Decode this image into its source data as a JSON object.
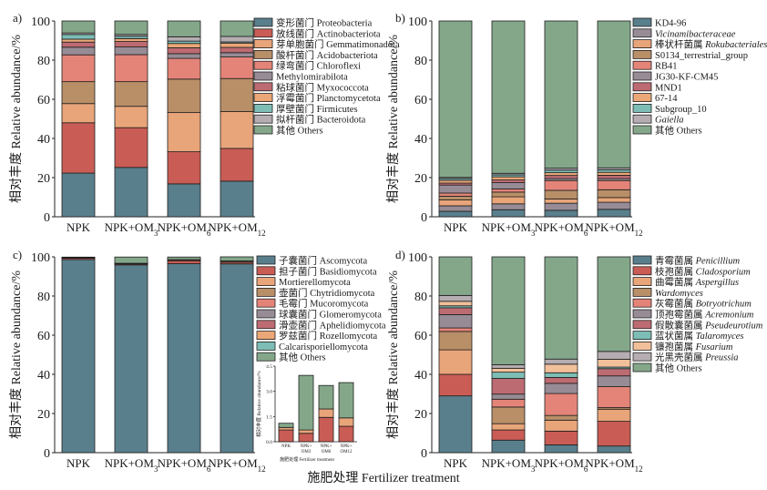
{
  "figure": {
    "xlabel": "施肥处理 Fertilizer treatment",
    "ylabel": "相对丰度 Relative abundance/%"
  },
  "colors": {
    "blue": "#5a7f8c",
    "red": "#c95d55",
    "orange": "#e8a57a",
    "brown": "#b98f68",
    "salmon": "#e48479",
    "mauve": "#978c96",
    "rose": "#bd6b72",
    "orange2": "#eba777",
    "teal": "#7dbdb6",
    "lightgray": "#b5adb2",
    "green": "#84a78a",
    "peach": "#f1c09a",
    "darkgray": "#2b2b2b"
  },
  "chart_data": [
    {
      "panel": "a)",
      "type": "bar",
      "stacked": true,
      "categories": [
        "NPK",
        "NPK+OM3",
        "NPK+OM6",
        "NPK+OM12"
      ],
      "category_labels": [
        {
          "base": "NPK",
          "sub": ""
        },
        {
          "base": "NPK+OM",
          "sub": "3"
        },
        {
          "base": "NPK+OM",
          "sub": "6"
        },
        {
          "base": "NPK+OM",
          "sub": "12"
        }
      ],
      "ylabel": "相对丰度 Relative abundance/%",
      "ylim": [
        0,
        100
      ],
      "yticks": [
        0,
        20,
        40,
        60,
        80,
        100
      ],
      "legend_position": "right",
      "series": [
        {
          "name": "变形菌门 Proteobacteria",
          "italic": "",
          "color": "blue",
          "values": [
            22.3,
            25.2,
            16.8,
            18.2
          ]
        },
        {
          "name": "放线菌门 Actinobacteriota",
          "italic": "",
          "color": "red",
          "values": [
            25.7,
            20.3,
            16.4,
            16.7
          ]
        },
        {
          "name": "芽单胞菌门 Gemmatimonadota",
          "italic": "",
          "color": "orange",
          "values": [
            9.8,
            10.9,
            20.0,
            18.8
          ]
        },
        {
          "name": "酸杆菌门 Acidobacteriota",
          "italic": "",
          "color": "brown",
          "values": [
            11.2,
            12.6,
            17.1,
            16.9
          ]
        },
        {
          "name": "绿弯菌门 Chloroflexi",
          "italic": "",
          "color": "salmon",
          "values": [
            13.7,
            13.8,
            10.6,
            11.0
          ]
        },
        {
          "name": "Methylomirabilota",
          "italic": "",
          "color": "mauve",
          "values": [
            3.9,
            3.9,
            2.4,
            2.2
          ]
        },
        {
          "name": "粘球菌门 Myxococcota",
          "italic": "",
          "color": "rose",
          "values": [
            2.6,
            2.8,
            3.0,
            2.7
          ]
        },
        {
          "name": "浮霉菌门 Planctomycetota",
          "italic": "",
          "color": "orange2",
          "values": [
            1.5,
            1.5,
            2.2,
            2.2
          ]
        },
        {
          "name": "厚壁菌门 Firmicutes",
          "italic": "",
          "color": "teal",
          "values": [
            2.4,
            1.2,
            1.2,
            0.6
          ]
        },
        {
          "name": "拟杆菌门 Bacteroidota",
          "italic": "",
          "color": "lightgray",
          "values": [
            0.8,
            0.9,
            2.2,
            2.8
          ]
        },
        {
          "name": "其他 Others",
          "italic": "",
          "color": "green",
          "values": [
            6.1,
            6.9,
            8.1,
            7.9
          ]
        }
      ]
    },
    {
      "panel": "b)",
      "type": "bar",
      "stacked": true,
      "categories": [
        "NPK",
        "NPK+OM3",
        "NPK+OM6",
        "NPK+OM12"
      ],
      "category_labels": [
        {
          "base": "NPK",
          "sub": ""
        },
        {
          "base": "NPK+OM",
          "sub": "3"
        },
        {
          "base": "NPK+OM",
          "sub": "6"
        },
        {
          "base": "NPK+OM",
          "sub": "12"
        }
      ],
      "ylabel": "相对丰度 Relative abundance/%",
      "ylim": [
        0,
        100
      ],
      "yticks": [
        0,
        20,
        40,
        60,
        80,
        100
      ],
      "legend_position": "right",
      "series": [
        {
          "name": "KD4-96",
          "italic": "",
          "color": "blue",
          "values": [
            2.8,
            3.6,
            3.3,
            3.8
          ]
        },
        {
          "name": "",
          "italic": "Vicinamibacteraceae",
          "color": "mauve",
          "values": [
            2.8,
            3.0,
            3.6,
            3.6
          ]
        },
        {
          "name": "棒状杆菌属 ",
          "italic": "Rokubacteriales",
          "color": "orange",
          "values": [
            3.0,
            3.6,
            2.2,
            2.4
          ]
        },
        {
          "name": "S0134_terrestrial_group",
          "italic": "",
          "color": "brown",
          "values": [
            1.9,
            2.4,
            4.4,
            4.0
          ]
        },
        {
          "name": "RB41",
          "italic": "",
          "color": "salmon",
          "values": [
            1.6,
            1.6,
            5.0,
            4.7
          ]
        },
        {
          "name": "JG30-KF-CM45",
          "italic": "",
          "color": "mauve",
          "values": [
            4.1,
            3.2,
            1.0,
            1.0
          ]
        },
        {
          "name": "MND1",
          "italic": "",
          "color": "rose",
          "values": [
            1.0,
            1.4,
            1.6,
            1.7
          ]
        },
        {
          "name": "67-14",
          "italic": "",
          "color": "orange2",
          "values": [
            1.4,
            1.6,
            1.4,
            1.5
          ]
        },
        {
          "name": "Subgroup_10",
          "italic": "",
          "color": "teal",
          "values": [
            0.9,
            1.0,
            1.3,
            1.3
          ]
        },
        {
          "name": "",
          "italic": "Gaiella",
          "color": "lightgray",
          "values": [
            0.6,
            0.8,
            1.0,
            1.0
          ]
        },
        {
          "name": "其他 Others",
          "italic": "",
          "color": "green",
          "values": [
            79.9,
            77.8,
            75.2,
            75.0
          ]
        }
      ]
    },
    {
      "panel": "c)",
      "type": "bar",
      "stacked": true,
      "categories": [
        "NPK",
        "NPK+OM3",
        "NPK+OM6",
        "NPK+OM12"
      ],
      "category_labels": [
        {
          "base": "NPK",
          "sub": ""
        },
        {
          "base": "NPK+OM",
          "sub": "3"
        },
        {
          "base": "NPK+OM",
          "sub": "6"
        },
        {
          "base": "NPK+OM",
          "sub": "12"
        }
      ],
      "ylabel": "相对丰度 Relative abundance/%",
      "ylim": [
        0,
        100
      ],
      "yticks": [
        0,
        20,
        40,
        60,
        80,
        100
      ],
      "legend_position": "right",
      "series": [
        {
          "name": "子囊菌门 Ascomycota",
          "italic": "",
          "color": "blue",
          "values": [
            98.6,
            95.9,
            96.5,
            96.4
          ]
        },
        {
          "name": "担子菌门 Basidiomycota",
          "italic": "",
          "color": "red",
          "values": [
            0.7,
            0.5,
            1.5,
            0.9
          ]
        },
        {
          "name": "Mortierellomycota",
          "italic": "",
          "color": "orange",
          "values": [
            0.15,
            0.2,
            0.5,
            0.5
          ]
        },
        {
          "name": "壶菌门 Chytridiomycota",
          "italic": "",
          "color": "brown",
          "values": [
            0.02,
            0.02,
            0.02,
            0.02
          ]
        },
        {
          "name": "毛霉门 Mucoromycota",
          "italic": "",
          "color": "salmon",
          "values": [
            0.02,
            0.02,
            0.02,
            0.02
          ]
        },
        {
          "name": "球囊菌门 Glomeromycota",
          "italic": "",
          "color": "mauve",
          "values": [
            0.02,
            0.02,
            0.02,
            0.02
          ]
        },
        {
          "name": "滑壶菌门 Aphelidiomycota",
          "italic": "",
          "color": "rose",
          "values": [
            0.02,
            0.02,
            0.02,
            0.02
          ]
        },
        {
          "name": "罗兹菌门 Rozellomycota",
          "italic": "",
          "color": "orange2",
          "values": [
            0.02,
            0.02,
            0.02,
            0.02
          ]
        },
        {
          "name": "Calcarisporiellomycota",
          "italic": "",
          "color": "teal",
          "values": [
            0.01,
            0.01,
            0.01,
            0.01
          ]
        },
        {
          "name": "其他 Others",
          "italic": "",
          "color": "green",
          "values": [
            0.3,
            3.2,
            1.3,
            2.1
          ]
        }
      ],
      "inset": {
        "type": "bar",
        "stacked": true,
        "ylabel": "相对丰度 Relative abundance/%",
        "xlabel": "施肥处理 Fertilizer treatment",
        "ylim": [
          0,
          4.5
        ],
        "yticks": [
          "0.0",
          "1.5",
          "3.0",
          "4.5"
        ],
        "category_labels": [
          {
            "line1": "NPK",
            "line2": ""
          },
          {
            "line1": "NPK+",
            "line2": "OM3"
          },
          {
            "line1": "NPK+",
            "line2": "OM6"
          },
          {
            "line1": "NPK+",
            "line2": "OM12"
          }
        ],
        "series": [
          {
            "name": "担子菌门 Basidiomycota",
            "color": "red",
            "values": [
              0.7,
              0.5,
              1.45,
              0.92
            ]
          },
          {
            "name": "Mortierellomycota",
            "color": "orange",
            "values": [
              0.15,
              0.2,
              0.5,
              0.5
            ]
          },
          {
            "name": "其他 Others",
            "color": "green",
            "values": [
              0.25,
              3.25,
              1.4,
              2.1
            ]
          }
        ]
      }
    },
    {
      "panel": "d)",
      "type": "bar",
      "stacked": true,
      "categories": [
        "NPK",
        "NPK+OM3",
        "NPK+OM6",
        "NPK+OM12"
      ],
      "category_labels": [
        {
          "base": "NPK",
          "sub": ""
        },
        {
          "base": "NPK+OM",
          "sub": "3"
        },
        {
          "base": "NPK+OM",
          "sub": "6"
        },
        {
          "base": "NPK+OM",
          "sub": "12"
        }
      ],
      "ylabel": "相对丰度 Relative abundance/%",
      "ylim": [
        0,
        100
      ],
      "yticks": [
        0,
        20,
        40,
        60,
        80,
        100
      ],
      "legend_position": "right",
      "series": [
        {
          "name": "青霉菌属 ",
          "italic": "Penicillium",
          "color": "blue",
          "values": [
            29.0,
            6.4,
            4.0,
            3.4
          ]
        },
        {
          "name": "枝孢菌属 ",
          "italic": "Cladosporium",
          "color": "red",
          "values": [
            11.0,
            5.2,
            7.0,
            12.6
          ]
        },
        {
          "name": "曲霉菌属 ",
          "italic": "Aspergillus",
          "color": "orange",
          "values": [
            12.5,
            3.2,
            5.6,
            6.2
          ]
        },
        {
          "name": "",
          "italic": "Wardomyces",
          "color": "brown",
          "values": [
            9.4,
            8.5,
            2.4,
            0.8
          ]
        },
        {
          "name": "灰霉菌属 ",
          "italic": "Botryotrichum",
          "color": "salmon",
          "values": [
            1.8,
            4.0,
            11.2,
            10.7
          ]
        },
        {
          "name": "顶孢霉菌属 ",
          "italic": "Acremonium",
          "color": "mauve",
          "values": [
            6.8,
            2.6,
            5.2,
            5.5
          ]
        },
        {
          "name": "假散囊菌属 ",
          "italic": "Pseudeurotium",
          "color": "rose",
          "values": [
            3.5,
            8.0,
            3.0,
            3.7
          ]
        },
        {
          "name": "蓝状菌属 ",
          "italic": "Talaromyces",
          "color": "teal",
          "values": [
            1.0,
            3.2,
            2.4,
            0.8
          ]
        },
        {
          "name": "镰孢菌属 ",
          "italic": "Fusarium",
          "color": "peach",
          "values": [
            2.3,
            2.0,
            4.4,
            4.0
          ]
        },
        {
          "name": "光黑壳菌属 ",
          "italic": "Preussia",
          "color": "lightgray",
          "values": [
            3.0,
            1.8,
            2.6,
            4.0
          ]
        },
        {
          "name": "其他 Others",
          "italic": "",
          "color": "green",
          "values": [
            19.7,
            55.1,
            52.2,
            48.3
          ]
        }
      ]
    }
  ]
}
